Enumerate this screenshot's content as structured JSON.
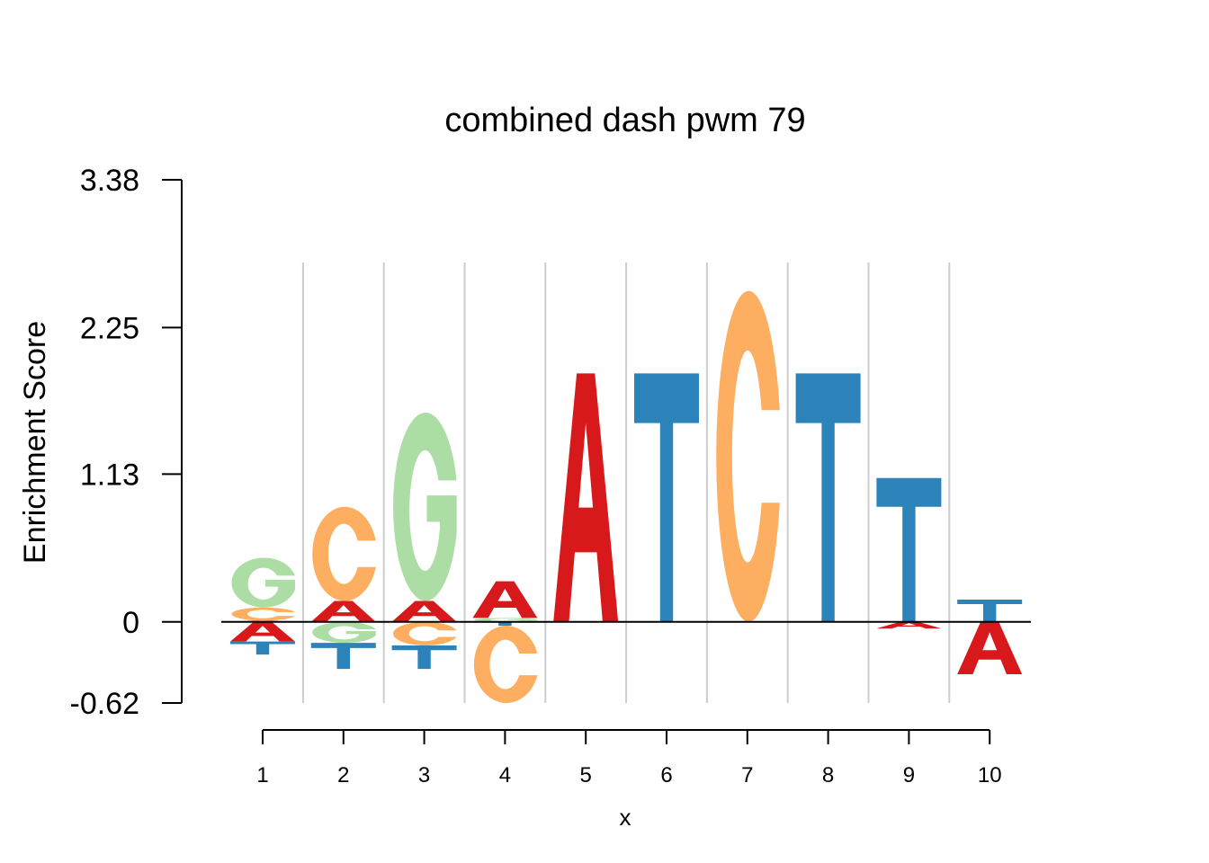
{
  "chart_data": {
    "type": "sequence-logo",
    "title": "combined dash pwm 79",
    "xlabel": "x",
    "ylabel": "Enrichment Score",
    "ylim": [
      -0.62,
      3.38
    ],
    "yticks": [
      "3.38",
      "2.25",
      "1.13",
      "0",
      "-0.62"
    ],
    "ytick_values": [
      3.38,
      2.25,
      1.13,
      0,
      -0.62
    ],
    "positions": [
      "1",
      "2",
      "3",
      "4",
      "5",
      "6",
      "7",
      "8",
      "9",
      "10"
    ],
    "grid": true,
    "colors": {
      "A": "#d7191c",
      "C": "#fdae61",
      "G": "#abdda4",
      "T": "#2b83ba"
    },
    "columns": [
      {
        "pos": 1,
        "up": [
          [
            "A",
            0.01
          ],
          [
            "C",
            0.1
          ],
          [
            "G",
            0.38
          ]
        ],
        "down": [
          [
            "A",
            0.15
          ],
          [
            "T",
            0.1
          ]
        ]
      },
      {
        "pos": 2,
        "up": [
          [
            "A",
            0.16
          ],
          [
            "C",
            0.72
          ]
        ],
        "down": [
          [
            "G",
            0.16
          ],
          [
            "T",
            0.2
          ]
        ]
      },
      {
        "pos": 3,
        "up": [
          [
            "A",
            0.16
          ],
          [
            "G",
            1.44
          ]
        ],
        "down": [
          [
            "C",
            0.18
          ],
          [
            "T",
            0.18
          ]
        ]
      },
      {
        "pos": 4,
        "up": [
          [
            "G",
            0.03
          ],
          [
            "A",
            0.28
          ]
        ],
        "down": [
          [
            "T",
            0.03
          ],
          [
            "C",
            0.59
          ]
        ]
      },
      {
        "pos": 5,
        "up": [
          [
            "A",
            1.9
          ]
        ],
        "down": []
      },
      {
        "pos": 6,
        "up": [
          [
            "T",
            1.9
          ]
        ],
        "down": []
      },
      {
        "pos": 7,
        "up": [
          [
            "C",
            2.53
          ]
        ],
        "down": []
      },
      {
        "pos": 8,
        "up": [
          [
            "T",
            1.9
          ]
        ],
        "down": []
      },
      {
        "pos": 9,
        "up": [
          [
            "T",
            1.1
          ]
        ],
        "down": [
          [
            "A",
            0.05
          ]
        ]
      },
      {
        "pos": 10,
        "up": [
          [
            "T",
            0.17
          ]
        ],
        "down": [
          [
            "A",
            0.4
          ]
        ]
      }
    ]
  }
}
